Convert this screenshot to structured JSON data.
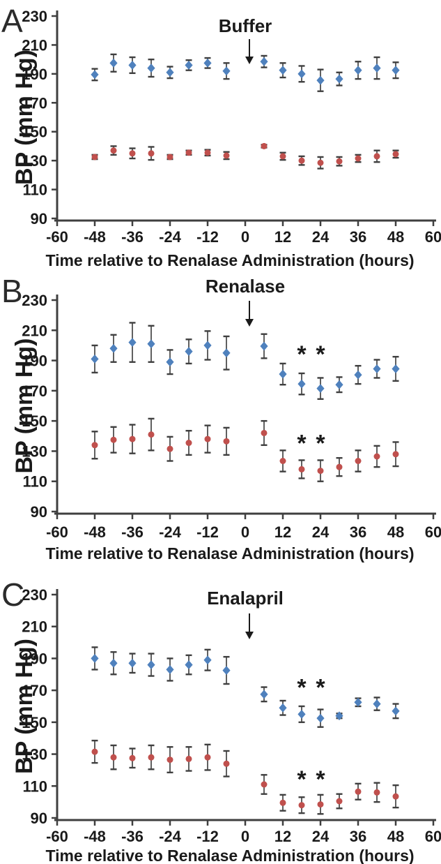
{
  "figure": {
    "ylabel": "BP  (mm Hg)",
    "xlabel": "Time relative to Renalase Administration (hours)",
    "colors": {
      "diamond_series": "#4F81BD",
      "circle_series": "#C0504D",
      "error_bar": "#606060",
      "axis": "#3F3F3F",
      "text": "#1A1A1A"
    }
  },
  "chart_data": [
    {
      "type": "scatter",
      "panel_letter": "A",
      "title": "Buffer",
      "xlabel": "Time relative to Renalase Administration (hours)",
      "ylabel": "BP  (mm Hg)",
      "xlim": [
        -60,
        60
      ],
      "ylim": [
        90,
        230
      ],
      "xticks": [
        -60,
        -48,
        -36,
        -24,
        -12,
        0,
        12,
        24,
        36,
        48,
        60
      ],
      "yticks": [
        90,
        110,
        130,
        150,
        170,
        190,
        210,
        230
      ],
      "arrow_x": 1,
      "grid": false,
      "legend": "none",
      "x": [
        -48,
        -42,
        -36,
        -30,
        -24,
        -18,
        -12,
        -6,
        6,
        12,
        18,
        24,
        30,
        36,
        42,
        48
      ],
      "series": [
        {
          "name": "blue-diamond-series",
          "marker": "diamond",
          "color": "#4F81BD",
          "values": [
            189.5,
            197.5,
            196,
            194,
            191,
            196,
            197.5,
            192,
            198.5,
            192.5,
            190,
            185.5,
            186.5,
            192.5,
            194,
            192.5
          ],
          "errors": [
            4,
            6,
            5.5,
            6,
            4,
            3.5,
            3.5,
            5.5,
            4,
            5,
            5.5,
            7.5,
            4.5,
            6,
            7.5,
            5.5
          ]
        },
        {
          "name": "red-circle-series",
          "marker": "circle",
          "color": "#C0504D",
          "values": [
            132.5,
            137,
            135,
            135,
            132.5,
            135.5,
            135.5,
            133.5,
            140,
            133,
            130,
            128.5,
            129.5,
            131.5,
            133,
            134.5
          ],
          "errors": [
            1.5,
            3,
            3.5,
            4.5,
            1.5,
            1.5,
            2,
            2.5,
            1,
            2.5,
            3,
            4,
            3,
            2.5,
            4,
            2.5
          ]
        }
      ],
      "asterisks": []
    },
    {
      "type": "scatter",
      "panel_letter": "B",
      "title": "Renalase",
      "xlabel": "Time relative to Renalase Administration (hours)",
      "ylabel": "BP  (mm Hg)",
      "xlim": [
        -60,
        60
      ],
      "ylim": [
        90,
        230
      ],
      "xticks": [
        -60,
        -48,
        -36,
        -24,
        -12,
        0,
        12,
        24,
        36,
        48,
        60
      ],
      "yticks": [
        90,
        110,
        130,
        150,
        170,
        190,
        210,
        230
      ],
      "arrow_x": 1,
      "grid": false,
      "legend": "none",
      "x": [
        -48,
        -42,
        -36,
        -30,
        -24,
        -18,
        -12,
        -6,
        6,
        12,
        18,
        24,
        30,
        36,
        42,
        48
      ],
      "series": [
        {
          "name": "blue-diamond-series",
          "marker": "diamond",
          "color": "#4F81BD",
          "values": [
            191,
            198,
            202,
            201,
            189,
            196,
            200,
            195,
            199.5,
            181,
            174.5,
            171.5,
            174,
            180.5,
            184.5,
            184.5
          ],
          "errors": [
            9,
            9,
            13,
            12,
            8,
            8,
            9.5,
            11,
            8,
            7,
            7,
            7,
            5,
            6,
            6,
            8
          ]
        },
        {
          "name": "red-circle-series",
          "marker": "circle",
          "color": "#C0504D",
          "values": [
            134,
            137.5,
            138,
            141,
            131.5,
            135.5,
            138,
            136.5,
            142,
            123.5,
            118,
            117,
            119.5,
            123.5,
            126.5,
            128
          ],
          "errors": [
            9,
            8.5,
            9.5,
            10.5,
            8,
            8,
            9,
            9,
            8,
            7,
            6,
            7,
            6,
            7,
            7,
            8
          ]
        }
      ],
      "asterisks": [
        {
          "x": 18,
          "y": 195
        },
        {
          "x": 24,
          "y": 195
        },
        {
          "x": 18,
          "y": 136
        },
        {
          "x": 24,
          "y": 136
        }
      ]
    },
    {
      "type": "scatter",
      "panel_letter": "C",
      "title": "Enalapril",
      "xlabel": "Time relative to Renalase Administration (hours)",
      "ylabel": "BP  (mm Hg)",
      "xlim": [
        -60,
        60
      ],
      "ylim": [
        90,
        230
      ],
      "xticks": [
        -60,
        -48,
        -36,
        -24,
        -12,
        0,
        12,
        24,
        36,
        48,
        60
      ],
      "yticks": [
        90,
        110,
        130,
        150,
        170,
        190,
        210,
        230
      ],
      "arrow_x": 1,
      "grid": false,
      "legend": "none",
      "x": [
        -48,
        -42,
        -36,
        -30,
        -24,
        -18,
        -12,
        -6,
        6,
        12,
        18,
        24,
        30,
        36,
        42,
        48
      ],
      "series": [
        {
          "name": "blue-diamond-series",
          "marker": "diamond",
          "color": "#4F81BD",
          "values": [
            190,
            187,
            187,
            186,
            183,
            186,
            189,
            182.5,
            167.5,
            159,
            155,
            152.5,
            154,
            162.5,
            161.5,
            157
          ],
          "errors": [
            7,
            7,
            6,
            7,
            7,
            6,
            6.5,
            8.5,
            4.5,
            4.5,
            5,
            5.5,
            1.5,
            2.5,
            4,
            4.5
          ]
        },
        {
          "name": "red-circle-series",
          "marker": "circle",
          "color": "#C0504D",
          "values": [
            131.5,
            128,
            127.5,
            128,
            126.5,
            127,
            128,
            124,
            111,
            99.5,
            98,
            98.5,
            100.5,
            106.5,
            106,
            103.5
          ],
          "errors": [
            7,
            7.5,
            6,
            7.5,
            8,
            7.5,
            8,
            8,
            6,
            5,
            5,
            6,
            4.5,
            5,
            6,
            7
          ]
        }
      ],
      "asterisks": [
        {
          "x": 18,
          "y": 172.5
        },
        {
          "x": 24,
          "y": 172.5
        },
        {
          "x": 18,
          "y": 115
        },
        {
          "x": 24,
          "y": 115
        }
      ]
    }
  ]
}
